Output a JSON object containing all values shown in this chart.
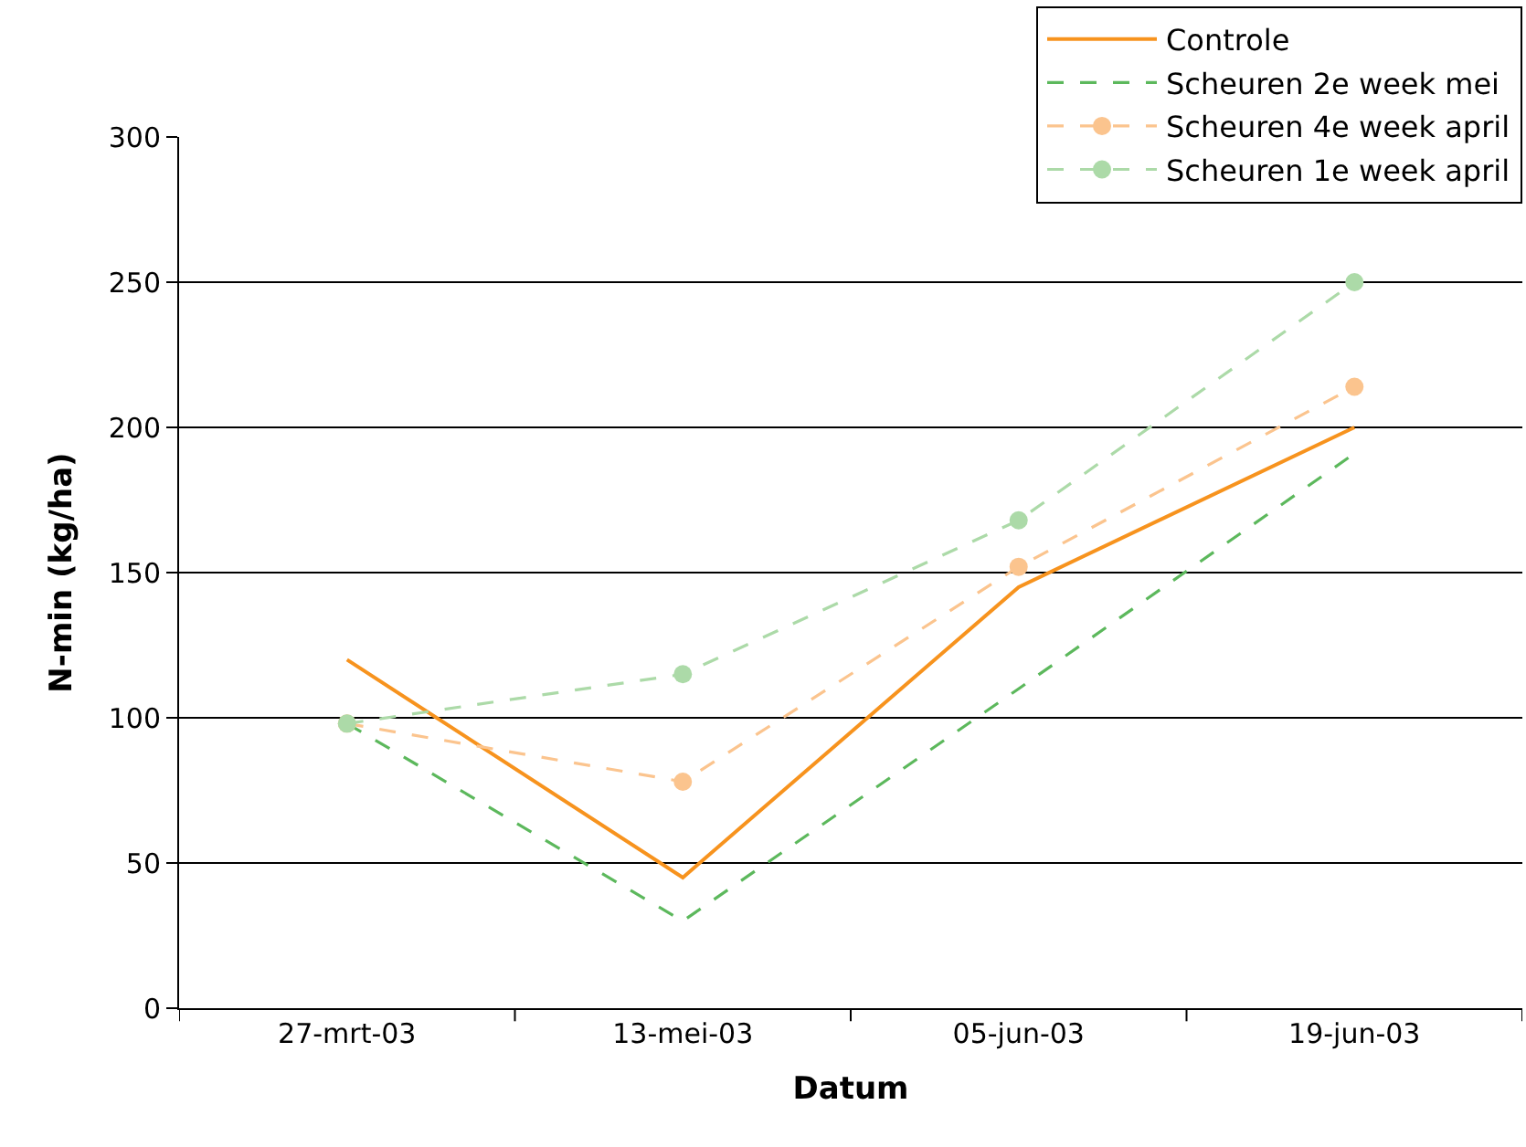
{
  "chart_data": {
    "type": "line",
    "xlabel": "Datum",
    "ylabel": "N-min (kg/ha)",
    "categories": [
      "27-mrt-03",
      "13-mei-03",
      "05-jun-03",
      "19-jun-03"
    ],
    "series": [
      {
        "name": "Controle",
        "color": "#f7931e",
        "values": [
          120,
          45,
          145,
          200
        ],
        "line_style": "solid",
        "marker": "none"
      },
      {
        "name": "Scheuren 2e week mei",
        "color": "#5cb85c",
        "values": [
          98,
          30,
          110,
          191
        ],
        "line_style": "dashed",
        "marker": "none"
      },
      {
        "name": "Scheuren 4e week april",
        "color": "#fbc48e",
        "values": [
          98,
          78,
          152,
          214
        ],
        "line_style": "dashed",
        "marker": "circle"
      },
      {
        "name": "Scheuren 1e week april",
        "color": "#acdaa8",
        "values": [
          98,
          115,
          168,
          250
        ],
        "line_style": "dashed",
        "marker": "circle"
      }
    ],
    "ylim": [
      0,
      300
    ],
    "yticks": [
      0,
      50,
      100,
      150,
      200,
      250,
      300
    ],
    "grid": "y",
    "legend": "top right"
  }
}
